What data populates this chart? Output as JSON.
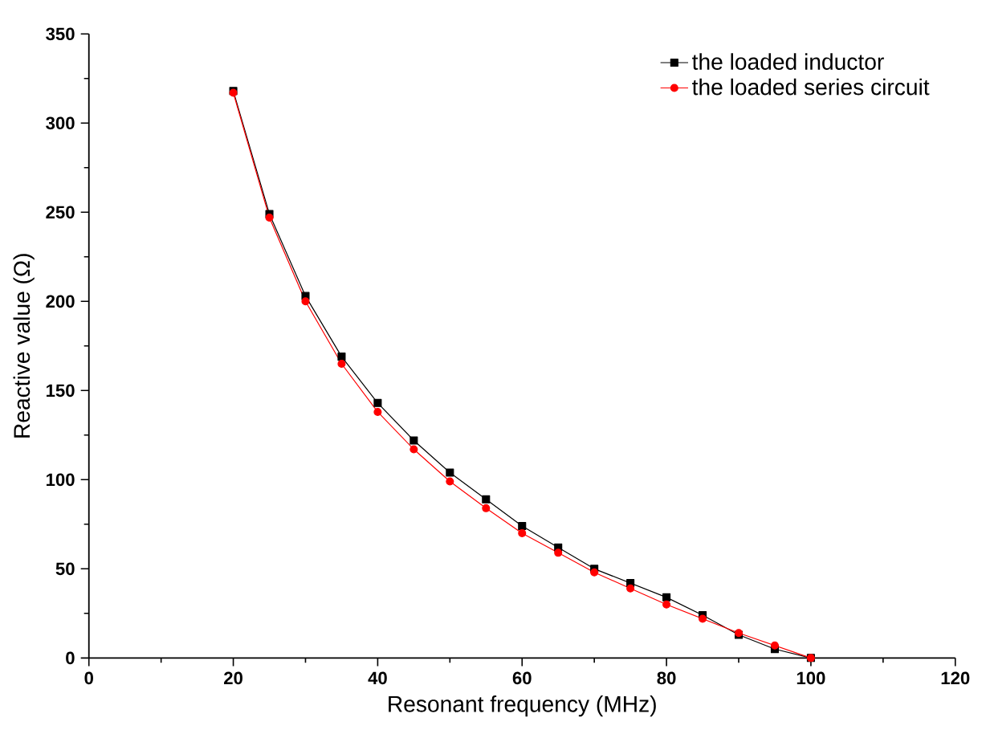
{
  "chart_data": {
    "type": "line",
    "xlabel": "Resonant frequency (MHz)",
    "ylabel": "Reactive value (Ω)",
    "x": [
      20,
      25,
      30,
      35,
      40,
      45,
      50,
      55,
      60,
      65,
      70,
      75,
      80,
      85,
      90,
      95,
      100
    ],
    "series": [
      {
        "name": "the loaded inductor",
        "color": "#000000",
        "marker": "square",
        "values": [
          318,
          249,
          203,
          169,
          143,
          122,
          104,
          89,
          74,
          62,
          50,
          42,
          34,
          24,
          13,
          5,
          0
        ]
      },
      {
        "name": "the loaded series circuit",
        "color": "#ff0000",
        "marker": "circle",
        "values": [
          317,
          247,
          200,
          165,
          138,
          117,
          99,
          84,
          70,
          59,
          48,
          39,
          30,
          22,
          14,
          7,
          0
        ]
      }
    ],
    "xlim": [
      0,
      120
    ],
    "xticks": [
      0,
      20,
      40,
      60,
      80,
      100,
      120
    ],
    "ylim": [
      0,
      350
    ],
    "yticks": [
      0,
      50,
      100,
      150,
      200,
      250,
      300,
      350
    ],
    "legend": "top right",
    "grid": false,
    "line_style": "solid"
  }
}
